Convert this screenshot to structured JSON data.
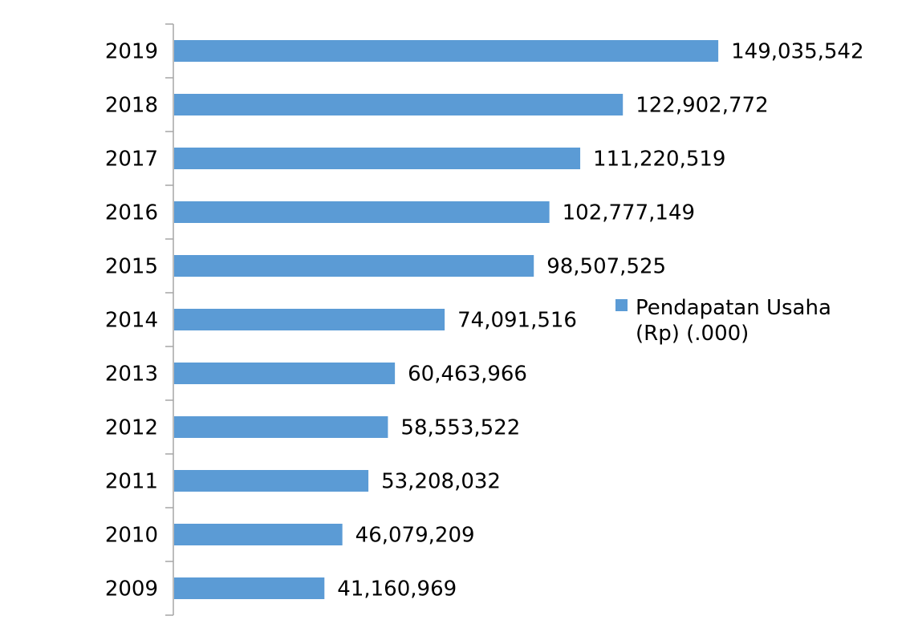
{
  "chart_data": {
    "type": "bar",
    "orientation": "horizontal",
    "categories": [
      "2019",
      "2018",
      "2017",
      "2016",
      "2015",
      "2014",
      "2013",
      "2012",
      "2011",
      "2010",
      "2009"
    ],
    "series": [
      {
        "name": "Pendapatan Usaha (Rp) (.000)",
        "values": [
          149035542,
          122902772,
          111220519,
          102777149,
          98507525,
          74091516,
          60463966,
          58553522,
          53208032,
          46079209,
          41160969
        ],
        "value_labels": [
          "149,035,542",
          "122,902,772",
          "111,220,519",
          "102,777,149",
          "98,507,525",
          "74,091,516",
          "60,463,966",
          "58,553,522",
          "53,208,032",
          "46,079,209",
          "41,160,969"
        ],
        "color": "#5b9bd5"
      }
    ],
    "legend": {
      "position": "right",
      "lines": [
        "Pendapatan Usaha",
        "(Rp) (.000)"
      ]
    },
    "xlim": [
      0,
      200000000
    ],
    "title": "",
    "xlabel": "",
    "ylabel": "",
    "grid": false,
    "axis_color": "#a6a6a6"
  }
}
